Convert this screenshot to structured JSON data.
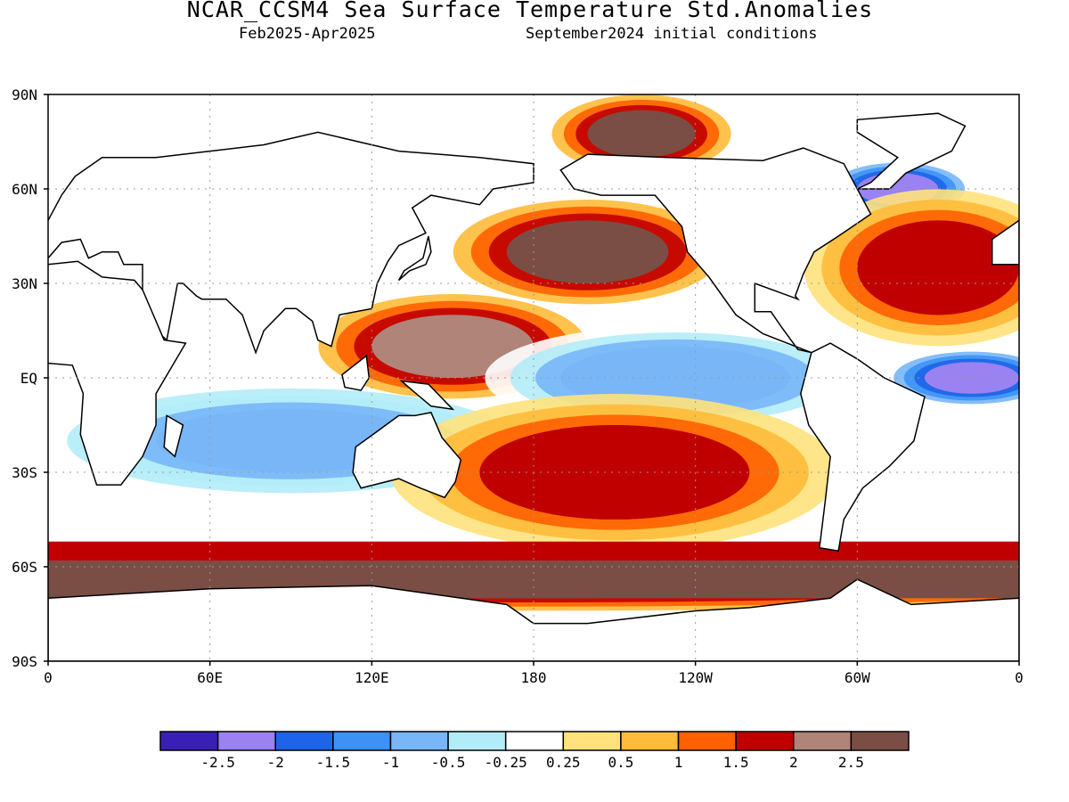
{
  "header": {
    "title": "NCAR_CCSM4 Sea Surface Temperature Std.Anomalies",
    "period": "Feb2025-Apr2025",
    "init": "September2024 initial conditions"
  },
  "axes": {
    "lat_labels": [
      "90N",
      "60N",
      "30N",
      "EQ",
      "30S",
      "60S",
      "90S"
    ],
    "lon_labels": [
      "0",
      "60E",
      "120E",
      "180",
      "120W",
      "60W",
      "0"
    ]
  },
  "colorbar": {
    "colors": [
      "#3a1fb6",
      "#9a82f2",
      "#1e64e8",
      "#3c92f5",
      "#78b6f8",
      "#b2ecf8",
      "#ffffff",
      "#ffe27c",
      "#ffbb3a",
      "#ff6000",
      "#c00000",
      "#b08478",
      "#7a4e45"
    ],
    "tick_labels": [
      "-2.5",
      "-2",
      "-1.5",
      "-1",
      "-0.5",
      "-0.25",
      "0.25",
      "0.5",
      "1",
      "1.5",
      "2",
      "2.5"
    ]
  },
  "chart_data": {
    "type": "heatmap",
    "title": "NCAR_CCSM4 Sea Surface Temperature Std.Anomalies",
    "subtitle": "Feb2025-Apr2025   September2024 initial conditions",
    "xlabel": "",
    "ylabel": "",
    "x_range": [
      0,
      360
    ],
    "y_range": [
      -90,
      90
    ],
    "legend_placement": "bottom",
    "levels": [
      -2.5,
      -2,
      -1.5,
      -1,
      -0.5,
      -0.25,
      0.25,
      0.5,
      1,
      1.5,
      2,
      2.5
    ],
    "approx_regions": [
      {
        "lon": [
          170,
          230
        ],
        "lat": [
          30,
          50
        ],
        "anomaly": 2.5
      },
      {
        "lon": [
          120,
          180
        ],
        "lat": [
          0,
          20
        ],
        "anomaly": 2
      },
      {
        "lon": [
          190,
          275
        ],
        "lat": [
          -10,
          10
        ],
        "anomaly": -0.75
      },
      {
        "lon": [
          325,
          360
        ],
        "lat": [
          -5,
          5
        ],
        "anomaly": -2.5
      },
      {
        "lon": [
          300,
          330
        ],
        "lat": [
          55,
          65
        ],
        "anomaly": -2.5
      },
      {
        "lon": [
          0,
          360
        ],
        "lat": [
          -70,
          -58
        ],
        "anomaly": 2.5
      },
      {
        "lon": [
          40,
          140
        ],
        "lat": [
          -30,
          -10
        ],
        "anomaly": -1
      },
      {
        "lon": [
          160,
          260
        ],
        "lat": [
          -45,
          -15
        ],
        "anomaly": 1.5
      },
      {
        "lon": [
          300,
          360
        ],
        "lat": [
          20,
          50
        ],
        "anomaly": 1.5
      },
      {
        "lon": [
          200,
          240
        ],
        "lat": [
          70,
          85
        ],
        "anomaly": 2.5
      }
    ]
  }
}
